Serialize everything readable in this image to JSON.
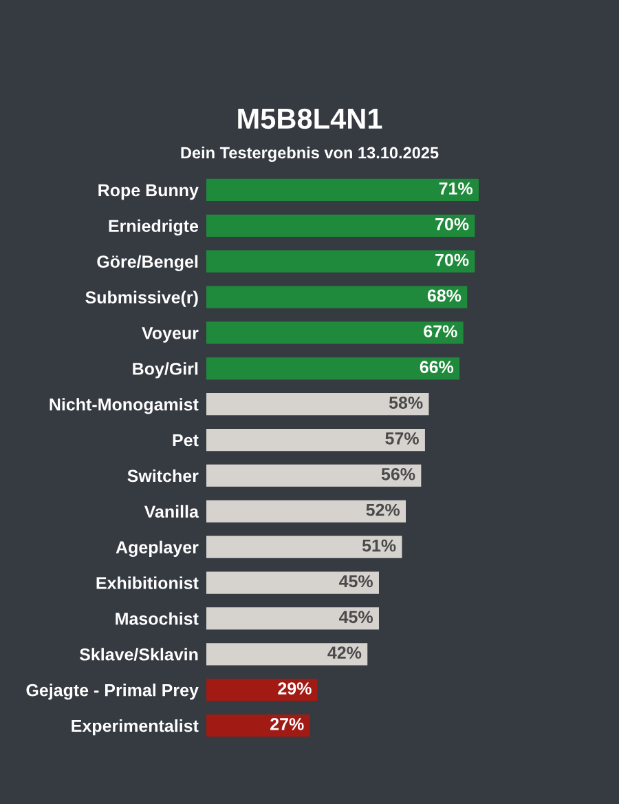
{
  "chart_data": {
    "type": "bar",
    "orientation": "horizontal",
    "title": "M5B8L4N1",
    "subtitle": "Dein Testergebnis von 13.10.2025",
    "categories": [
      "Rope Bunny",
      "Erniedrigte",
      "Göre/Bengel",
      "Submissive(r)",
      "Voyeur",
      "Boy/Girl",
      "Nicht-Monogamist",
      "Pet",
      "Switcher",
      "Vanilla",
      "Ageplayer",
      "Exhibitionist",
      "Masochist",
      "Sklave/Sklavin",
      "Gejagte - Primal Prey",
      "Experimentalist"
    ],
    "values": [
      71,
      70,
      70,
      68,
      67,
      66,
      58,
      57,
      56,
      52,
      51,
      45,
      45,
      42,
      29,
      27
    ],
    "value_labels": [
      "71%",
      "70%",
      "70%",
      "68%",
      "67%",
      "66%",
      "58%",
      "57%",
      "56%",
      "52%",
      "51%",
      "45%",
      "45%",
      "42%",
      "29%",
      "27%"
    ],
    "colors": [
      "#1f8a3b",
      "#1f8a3b",
      "#1f8a3b",
      "#1f8a3b",
      "#1f8a3b",
      "#1f8a3b",
      "#d6d3cf",
      "#d6d3cf",
      "#d6d3cf",
      "#d6d3cf",
      "#d6d3cf",
      "#d6d3cf",
      "#d6d3cf",
      "#d6d3cf",
      "#a11a14",
      "#a11a14"
    ],
    "grid": false,
    "legend": false
  }
}
